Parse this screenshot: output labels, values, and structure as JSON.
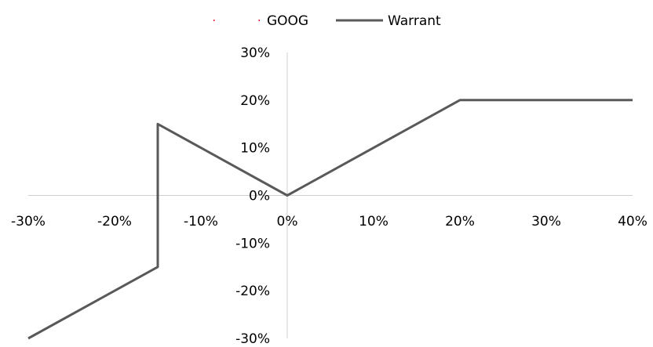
{
  "chart_data": {
    "type": "line",
    "title": "",
    "xlabel": "",
    "ylabel": "",
    "xlim": [
      -0.3,
      0.4
    ],
    "ylim": [
      -0.3,
      0.3
    ],
    "x_ticks": [
      -0.3,
      -0.2,
      -0.1,
      0,
      0.1,
      0.2,
      0.3,
      0.4
    ],
    "y_ticks": [
      0.3,
      0.2,
      0.1,
      0,
      -0.1,
      -0.2,
      -0.3
    ],
    "x_tick_labels": [
      "-30%",
      "-20%",
      "-10%",
      "0%",
      "10%",
      "20%",
      "30%",
      "40%"
    ],
    "y_tick_labels": [
      "30%",
      "20%",
      "10%",
      "0%",
      "-10%",
      "-20%",
      "-30%"
    ],
    "legend": {
      "position": "top",
      "entries": [
        "GOOG",
        "Warrant"
      ]
    },
    "series": [
      {
        "name": "GOOG",
        "color": "#e8102a",
        "style": "dotted",
        "points": []
      },
      {
        "name": "Warrant",
        "color": "#595959",
        "style": "solid",
        "points": [
          {
            "x": -0.3,
            "y": -0.3
          },
          {
            "x": -0.15,
            "y": -0.15
          },
          {
            "x": -0.15,
            "y": 0.15
          },
          {
            "x": 0,
            "y": 0
          },
          {
            "x": 0.2,
            "y": 0.2
          },
          {
            "x": 0.4,
            "y": 0.2
          }
        ]
      }
    ]
  }
}
